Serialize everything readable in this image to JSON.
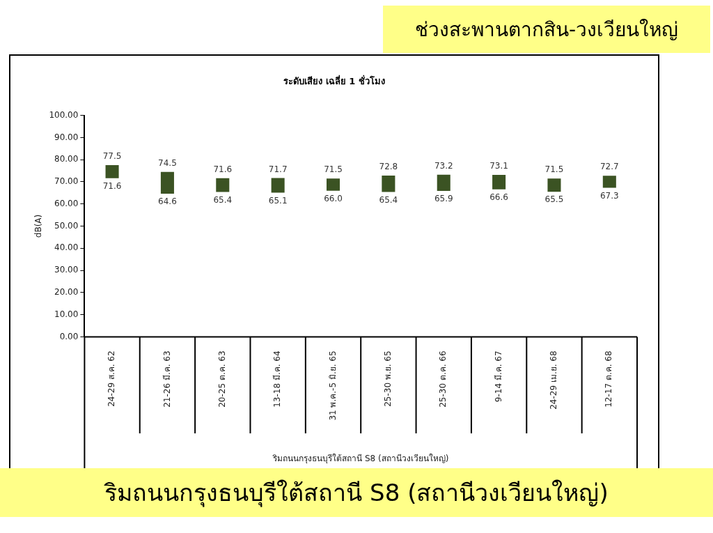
{
  "chart_data": {
    "type": "bar",
    "title": "ระดับเสียง เฉลี่ย 1 ชั่วโมง",
    "subtitle": "ช่วงสะพานตากสิน-วงเวียนใหญ่",
    "xlabel": "ริมถนนกรุงธนบุรีใต้สถานี S8 (สถานีวงเวียนใหญ่)",
    "ylabel": "dB(A)",
    "categories": [
      "24-29 ส.ค. 62",
      "21-26 มี.ค. 63",
      "20-25 ต.ค. 63",
      "13-18 มี.ค. 64",
      "31 พ.ค.-5 มิ.ย. 65",
      "25-30 พ.ย. 65",
      "25-30 ต.ค. 66",
      "9-14 มี.ค. 67",
      "24-29 เม.ย. 68",
      "12-17 ต.ค. 68"
    ],
    "base": [
      71.6,
      64.6,
      65.4,
      65.1,
      66.0,
      65.4,
      65.9,
      66.6,
      65.5,
      67.3
    ],
    "values": [
      5.9,
      9.9,
      6.2,
      6.6,
      5.5,
      7.4,
      7.3,
      6.5,
      6.0,
      5.4
    ],
    "color": "#3b5323",
    "ylim": [
      0,
      100
    ],
    "yticks": [
      {
        "value": 0,
        "label": "0.00"
      },
      {
        "value": 10,
        "label": "10.00"
      },
      {
        "value": 20,
        "label": "20.00"
      },
      {
        "value": 30,
        "label": "30.00"
      },
      {
        "value": 40,
        "label": "40.00"
      },
      {
        "value": 50,
        "label": "50.00"
      },
      {
        "value": 60,
        "label": "60.00"
      },
      {
        "value": 70,
        "label": "70.00"
      },
      {
        "value": 80,
        "label": "80.00"
      },
      {
        "value": 90,
        "label": "90.00"
      },
      {
        "value": 100,
        "label": "100.00"
      }
    ],
    "grid": false,
    "legend": false,
    "annotations": [
      "ริมถนนกรุงธนบุรีใต้สถานี S8 (สถานีวงเวียนใหญ่)",
      {
        "text": "77.5",
        "x": "24-29 ส.ค. 62",
        "y": 77.5
      },
      {
        "text": "71.6",
        "x": "24-29 ส.ค. 62",
        "y": 71.6
      },
      {
        "text": "74.5",
        "x": "21-26 มี.ค. 63",
        "y": 74.5
      },
      {
        "text": "64.6",
        "x": "21-26 มี.ค. 63",
        "y": 64.6
      },
      {
        "text": "71.6",
        "x": "20-25 ต.ค. 63",
        "y": 71.6
      },
      {
        "text": "65.4",
        "x": "20-25 ต.ค. 63",
        "y": 65.4
      },
      {
        "text": "71.7",
        "x": "13-18 มี.ค. 64",
        "y": 71.7
      },
      {
        "text": "65.1",
        "x": "13-18 มี.ค. 64",
        "y": 65.1
      },
      {
        "text": "71.5",
        "x": "31 พ.ค.-5 มิ.ย. 65",
        "y": 71.5
      },
      {
        "text": "66.0",
        "x": "31 พ.ค.-5 มิ.ย. 65",
        "y": 66.0
      },
      {
        "text": "72.8",
        "x": "25-30 พ.ย. 65",
        "y": 72.8
      },
      {
        "text": "65.4",
        "x": "25-30 พ.ย. 65",
        "y": 65.4
      },
      {
        "text": "73.2",
        "x": "25-30 ต.ค. 66",
        "y": 73.2
      },
      {
        "text": "65.9",
        "x": "25-30 ต.ค. 66",
        "y": 65.9
      },
      {
        "text": "73.1",
        "x": "9-14 มี.ค. 67",
        "y": 73.1
      },
      {
        "text": "66.6",
        "x": "9-14 มี.ค. 67",
        "y": 66.6
      },
      {
        "text": "71.5",
        "x": "24-29 เม.ย. 68",
        "y": 71.5
      },
      {
        "text": "65.5",
        "x": "24-29 เม.ย. 68",
        "y": 65.5
      },
      {
        "text": "72.7",
        "x": "12-17 ต.ค. 68",
        "y": 72.7
      },
      {
        "text": "67.3",
        "x": "12-17 ต.ค. 68",
        "y": 67.3
      }
    ]
  }
}
